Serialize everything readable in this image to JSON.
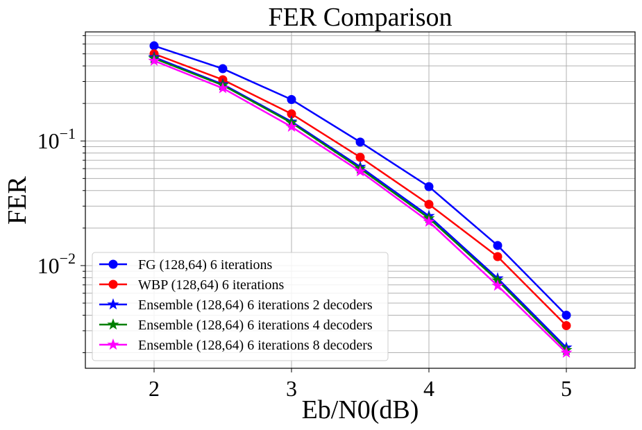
{
  "chart_data": {
    "type": "line",
    "title": "FER Comparison",
    "xlabel": "Eb/N0(dB)",
    "ylabel": "FER",
    "xlim": [
      1.5,
      5.5
    ],
    "ylim": [
      0.0015,
      0.75
    ],
    "yscale": "log",
    "grid": "major and minor",
    "legend_position": "lower-left",
    "x_ticks": [
      {
        "value": 2,
        "label": "2"
      },
      {
        "value": 3,
        "label": "3"
      },
      {
        "value": 4,
        "label": "4"
      },
      {
        "value": 5,
        "label": "5"
      }
    ],
    "y_ticks": [
      {
        "value": 0.1,
        "base": "10",
        "exp": "−1"
      },
      {
        "value": 0.01,
        "base": "10",
        "exp": "−2"
      }
    ],
    "x": [
      2,
      2.5,
      3,
      3.5,
      4,
      4.5,
      5
    ],
    "series": [
      {
        "name": "FG (128,64) 6 iterations",
        "color": "#0000ff",
        "marker": "circle",
        "values": [
          0.58,
          0.38,
          0.215,
          0.098,
          0.043,
          0.0145,
          0.004
        ]
      },
      {
        "name": "WBP (128,64) 6 iterations",
        "color": "#ff0000",
        "marker": "circle",
        "values": [
          0.5,
          0.31,
          0.165,
          0.074,
          0.031,
          0.0118,
          0.0033
        ]
      },
      {
        "name": "Ensemble (128,64) 6 iterations 2 decoders",
        "color": "#0000ff",
        "marker": "star",
        "values": [
          0.47,
          0.285,
          0.143,
          0.062,
          0.025,
          0.0079,
          0.0022
        ]
      },
      {
        "name": "Ensemble (128,64) 6 iterations 4 decoders",
        "color": "#008000",
        "marker": "star",
        "values": [
          0.46,
          0.28,
          0.14,
          0.06,
          0.024,
          0.0076,
          0.0021
        ]
      },
      {
        "name": "Ensemble (128,64) 6 iterations 8 decoders",
        "color": "#ff00ff",
        "marker": "star",
        "values": [
          0.44,
          0.265,
          0.13,
          0.057,
          0.0225,
          0.0069,
          0.002
        ]
      }
    ]
  }
}
